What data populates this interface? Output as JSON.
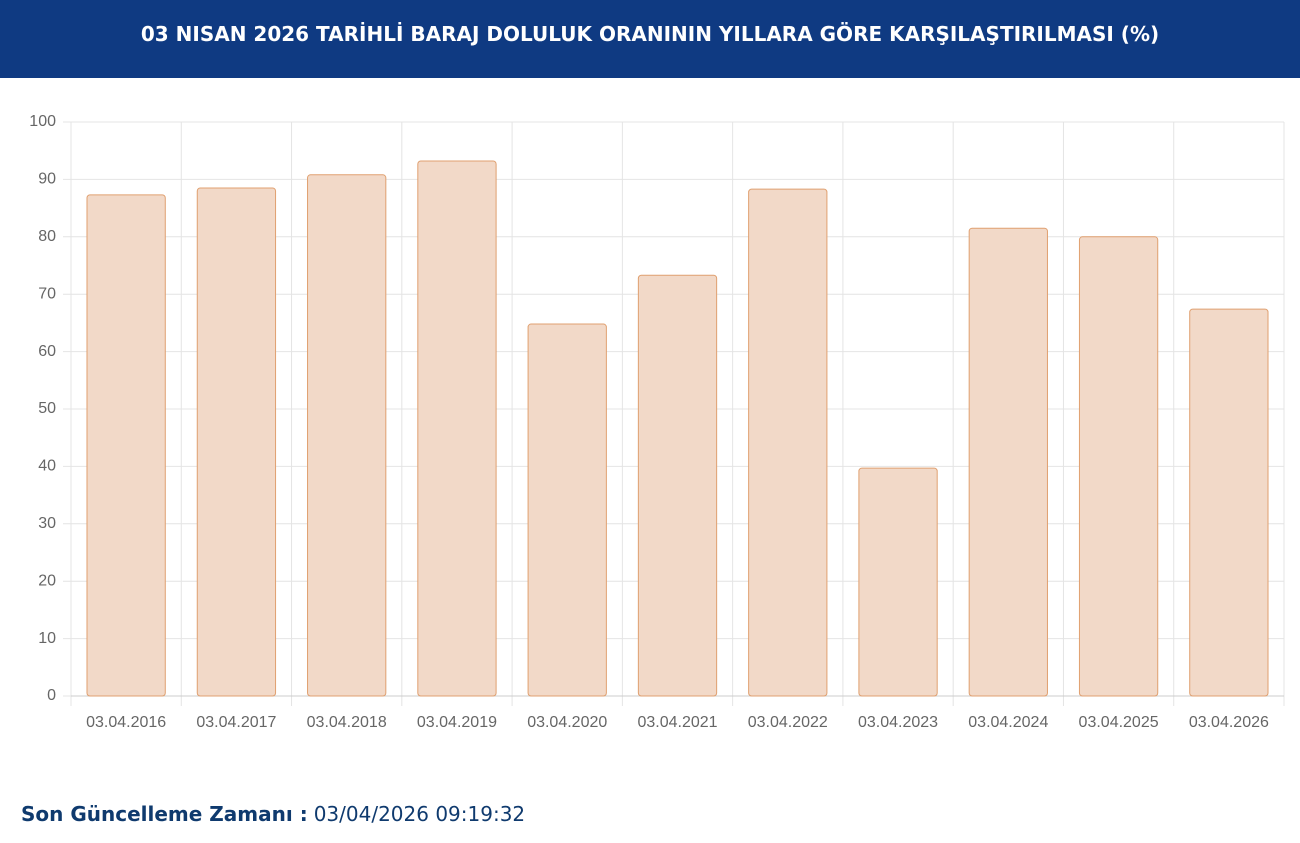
{
  "chart_data": {
    "type": "bar",
    "title": "03 NISAN 2026 TARİHLİ BARAJ DOLULUK ORANININ YILLARA GÖRE KARŞILAŞTIRILMASI (%)",
    "categories": [
      "03.04.2016",
      "03.04.2017",
      "03.04.2018",
      "03.04.2019",
      "03.04.2020",
      "03.04.2021",
      "03.04.2022",
      "03.04.2023",
      "03.04.2024",
      "03.04.2025",
      "03.04.2026"
    ],
    "values": [
      87.3,
      88.5,
      90.8,
      93.2,
      64.8,
      73.3,
      88.3,
      39.7,
      81.5,
      80.0,
      67.4
    ],
    "color": "#f2d9c8",
    "border_color": "#e0a070",
    "ylim": [
      0,
      100
    ],
    "yticks": [
      0,
      10,
      20,
      30,
      40,
      50,
      60,
      70,
      80,
      90,
      100
    ],
    "grid": true
  },
  "footer": {
    "label": "Son Güncelleme Zamanı :",
    "value": "03/04/2026 09:19:32"
  }
}
